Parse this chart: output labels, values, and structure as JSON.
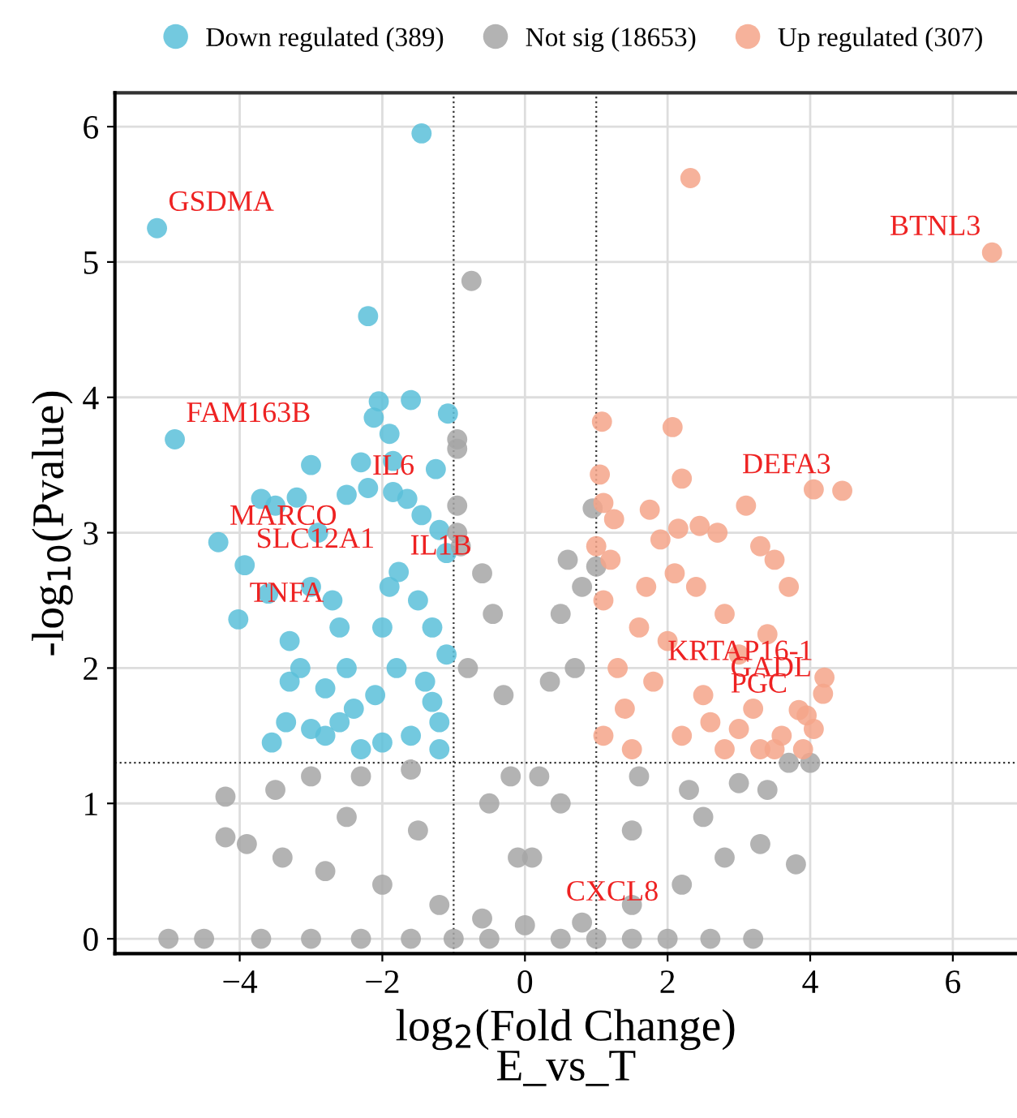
{
  "chart_data": {
    "type": "scatter",
    "xlabel": "log$_{2}$(Fold Change)\nE_vs_T",
    "ylabel": "-log$_{10}$(Pvalue)",
    "xlim": [
      -5.75,
      6.9
    ],
    "xticks": [
      {
        "value": -4,
        "label": "−4"
      },
      {
        "value": -2,
        "label": "−2"
      },
      0,
      2,
      4,
      6
    ],
    "ylim": [
      -0.11,
      6.25
    ],
    "yticks": [
      0,
      1,
      2,
      3,
      4,
      5,
      6
    ],
    "grid": true,
    "legend": "top",
    "marker": "circle",
    "ref_lines": [
      {
        "axis": "x",
        "value": -1,
        "color": "#333333",
        "line_style": "dotted"
      },
      {
        "axis": "x",
        "value": 1,
        "color": "#333333",
        "line_style": "dotted"
      },
      {
        "axis": "y",
        "value": 1.3,
        "color": "#333333",
        "line_style": "dotted"
      }
    ],
    "series": [
      {
        "name": "Down regulated (389)",
        "color": "#5bbfd9",
        "x": [
          -1.45,
          -5.16,
          -2.2,
          -4.91,
          -2.05,
          -2.12,
          -1.6,
          -1.08,
          -1.9,
          -3.0,
          -1.85,
          -2.3,
          -2.2,
          -1.25,
          -3.2,
          -2.5,
          -1.85,
          -1.65,
          -1.45,
          -3.7,
          -3.5,
          -2.9,
          -4.3,
          -3.93,
          -1.2,
          -1.1,
          -4.02,
          -3.6,
          -3.0,
          -2.7,
          -3.3,
          -3.15,
          -3.3,
          -2.5,
          -2.8,
          -2.4,
          -3.35,
          -3.55,
          -3.0,
          -2.8,
          -2.6,
          -1.77,
          -1.5,
          -1.3,
          -2.0,
          -1.8,
          -1.4,
          -1.2,
          -1.6,
          -2.0,
          -1.2,
          -2.3,
          -1.1,
          -1.3,
          -2.1,
          -1.9,
          -2.6
        ],
        "values": [
          5.95,
          5.25,
          4.6,
          3.69,
          3.97,
          3.85,
          3.98,
          3.88,
          3.73,
          3.5,
          3.53,
          3.52,
          3.33,
          3.47,
          3.26,
          3.28,
          3.3,
          3.25,
          3.13,
          3.25,
          3.2,
          3.0,
          2.93,
          2.76,
          3.02,
          2.85,
          2.36,
          2.55,
          2.6,
          2.5,
          2.2,
          2.0,
          1.9,
          2.0,
          1.85,
          1.7,
          1.6,
          1.45,
          1.55,
          1.5,
          1.6,
          2.71,
          2.5,
          2.3,
          2.3,
          2.0,
          1.9,
          1.6,
          1.5,
          1.45,
          1.4,
          1.4,
          2.1,
          1.75,
          1.8,
          2.6,
          2.3
        ]
      },
      {
        "name": "Not sig (18653)",
        "color": "#a6a6a6",
        "x": [
          -0.75,
          -0.95,
          -0.95,
          -0.95,
          -0.9,
          -0.95,
          -0.6,
          -0.45,
          -0.3,
          -0.2,
          -0.1,
          0,
          0.1,
          0.2,
          0.35,
          0.5,
          0.8,
          1.0,
          0.95,
          0.6,
          -1.6,
          -2.3,
          -3.0,
          -3.5,
          -4.2,
          -4.2,
          -3.9,
          -3.4,
          -2.8,
          -2.0,
          -1.2,
          -0.6,
          -4.5,
          -5.0,
          -3.7,
          -3.0,
          -2.3,
          -1.6,
          -1.0,
          -0.5,
          0.5,
          1.0,
          1.5,
          2.0,
          2.6,
          3.2,
          1.6,
          2.3,
          3.0,
          3.4,
          3.7,
          4.0,
          3.8,
          3.3,
          2.8,
          2.2,
          1.5,
          0.8,
          -0.5,
          0.5,
          -1.5,
          1.5,
          -2.5,
          2.5,
          -0.8,
          0.7
        ],
        "values": [
          4.86,
          3.69,
          3.62,
          3.2,
          2.9,
          3.0,
          2.7,
          2.4,
          1.8,
          1.2,
          0.6,
          0.1,
          0.6,
          1.2,
          1.9,
          2.4,
          2.6,
          2.75,
          3.18,
          2.8,
          1.25,
          1.2,
          1.2,
          1.1,
          1.05,
          0.75,
          0.7,
          0.6,
          0.5,
          0.4,
          0.25,
          0.15,
          0.0,
          0.0,
          0.0,
          0.0,
          0.0,
          0.0,
          0.0,
          0.0,
          0.0,
          0.0,
          0.0,
          0.0,
          0.0,
          0.0,
          1.2,
          1.1,
          1.15,
          1.1,
          1.3,
          1.3,
          0.55,
          0.7,
          0.6,
          0.4,
          0.25,
          0.12,
          1.0,
          1.0,
          0.8,
          0.8,
          0.9,
          0.9,
          2.0,
          2.0
        ]
      },
      {
        "name": "Up regulated (307)",
        "color": "#f4a48a",
        "x": [
          2.32,
          6.55,
          4.45,
          4.05,
          1.08,
          2.07,
          1.05,
          2.2,
          1.1,
          1.75,
          2.45,
          2.15,
          1.25,
          1.0,
          1.9,
          3.1,
          2.7,
          3.3,
          3.5,
          4.2,
          4.18,
          3.84,
          3.7,
          3.4,
          3.0,
          2.8,
          2.4,
          3.2,
          3.6,
          3.95,
          3.5,
          3.9,
          3.3,
          2.8,
          2.2,
          1.5,
          1.1,
          1.3,
          1.8,
          2.5,
          1.1,
          1.6,
          2.0,
          3.0,
          2.6,
          1.4,
          1.2,
          2.1,
          1.7,
          4.05
        ],
        "values": [
          5.62,
          5.07,
          3.31,
          3.32,
          3.82,
          3.78,
          3.43,
          3.4,
          3.22,
          3.17,
          3.05,
          3.03,
          3.1,
          2.9,
          2.95,
          3.2,
          3.0,
          2.9,
          2.8,
          1.93,
          1.81,
          1.69,
          2.6,
          2.25,
          2.1,
          2.4,
          2.6,
          1.7,
          1.5,
          1.65,
          1.4,
          1.4,
          1.4,
          1.4,
          1.5,
          1.4,
          1.5,
          2.0,
          1.9,
          1.8,
          2.5,
          2.3,
          2.2,
          1.55,
          1.6,
          1.7,
          2.8,
          2.7,
          2.6,
          1.55
        ]
      }
    ],
    "annotations": [
      {
        "text": "GSDMA",
        "x": -5.16,
        "y": 5.25
      },
      {
        "text": "FAM163B",
        "x": -4.91,
        "y": 3.69
      },
      {
        "text": "MARCO",
        "x": -4.3,
        "y": 2.93
      },
      {
        "text": "SLC12A1",
        "x": -3.93,
        "y": 2.76
      },
      {
        "text": "TNFA",
        "x": -4.02,
        "y": 2.36
      },
      {
        "text": "IL6",
        "x": -2.3,
        "y": 3.3
      },
      {
        "text": "IL1B",
        "x": -1.77,
        "y": 2.71
      },
      {
        "text": "BTNL3",
        "x": 6.55,
        "y": 5.07
      },
      {
        "text": "DEFA3",
        "x": 4.45,
        "y": 3.31
      },
      {
        "text": "KRTAP16-1",
        "x": 4.2,
        "y": 1.93
      },
      {
        "text": "GADL",
        "x": 4.18,
        "y": 1.81
      },
      {
        "text": "PGC",
        "x": 3.84,
        "y": 1.69
      },
      "CXCL8"
    ]
  }
}
